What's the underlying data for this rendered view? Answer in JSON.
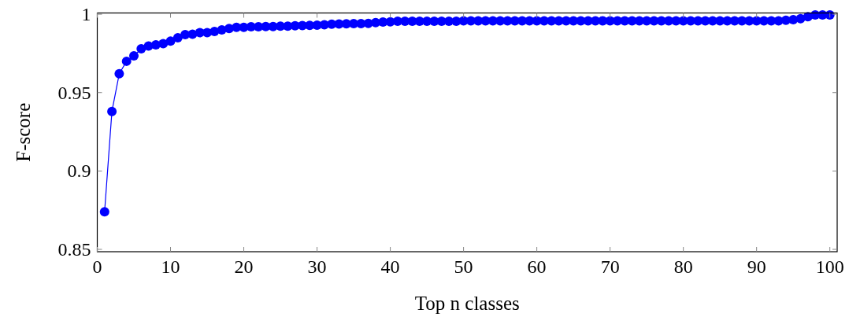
{
  "chart_data": {
    "type": "line",
    "xlabel": "Top n classes",
    "ylabel": "F-score",
    "x": [
      1,
      2,
      3,
      4,
      5,
      6,
      7,
      8,
      9,
      10,
      11,
      12,
      13,
      14,
      15,
      16,
      17,
      18,
      19,
      20,
      21,
      22,
      23,
      24,
      25,
      26,
      27,
      28,
      29,
      30,
      31,
      32,
      33,
      34,
      35,
      36,
      37,
      38,
      39,
      40,
      41,
      42,
      43,
      44,
      45,
      46,
      47,
      48,
      49,
      50,
      51,
      52,
      53,
      54,
      55,
      56,
      57,
      58,
      59,
      60,
      61,
      62,
      63,
      64,
      65,
      66,
      67,
      68,
      69,
      70,
      71,
      72,
      73,
      74,
      75,
      76,
      77,
      78,
      79,
      80,
      81,
      82,
      83,
      84,
      85,
      86,
      87,
      88,
      89,
      90,
      91,
      92,
      93,
      94,
      95,
      96,
      97,
      98,
      99,
      100
    ],
    "series": [
      {
        "color": "#0000ff",
        "values": [
          0.874,
          0.938,
          0.962,
          0.97,
          0.9734,
          0.978,
          0.9797,
          0.9805,
          0.9812,
          0.9828,
          0.985,
          0.987,
          0.9873,
          0.9882,
          0.9882,
          0.989,
          0.99,
          0.9909,
          0.9916,
          0.9916,
          0.992,
          0.992,
          0.9922,
          0.9922,
          0.9924,
          0.9924,
          0.9926,
          0.9928,
          0.9929,
          0.993,
          0.9933,
          0.9936,
          0.9938,
          0.9939,
          0.994,
          0.994,
          0.9942,
          0.9946,
          0.995,
          0.9952,
          0.9955,
          0.9955,
          0.9955,
          0.9955,
          0.9955,
          0.9955,
          0.9955,
          0.9955,
          0.9955,
          0.9958,
          0.9958,
          0.9958,
          0.9958,
          0.9958,
          0.9958,
          0.9958,
          0.9958,
          0.9958,
          0.9958,
          0.9958,
          0.9958,
          0.9958,
          0.9958,
          0.9958,
          0.9958,
          0.9958,
          0.9958,
          0.9958,
          0.9958,
          0.9958,
          0.9958,
          0.9958,
          0.9958,
          0.9958,
          0.9958,
          0.9958,
          0.9958,
          0.9958,
          0.9958,
          0.9958,
          0.9958,
          0.9958,
          0.9958,
          0.9958,
          0.9958,
          0.9958,
          0.9958,
          0.9958,
          0.9958,
          0.9958,
          0.9958,
          0.9958,
          0.9958,
          0.9962,
          0.9965,
          0.9972,
          0.9984,
          0.9996,
          0.9996,
          0.9996
        ]
      }
    ],
    "xlim": [
      0,
      101
    ],
    "ylim": [
      0.8485,
      1.0008
    ],
    "xticks": [
      0,
      10,
      20,
      30,
      40,
      50,
      60,
      70,
      80,
      90,
      100
    ],
    "yticks": [
      0.85,
      0.9,
      0.95,
      1
    ],
    "marker": "circle",
    "line_style": "solid"
  }
}
